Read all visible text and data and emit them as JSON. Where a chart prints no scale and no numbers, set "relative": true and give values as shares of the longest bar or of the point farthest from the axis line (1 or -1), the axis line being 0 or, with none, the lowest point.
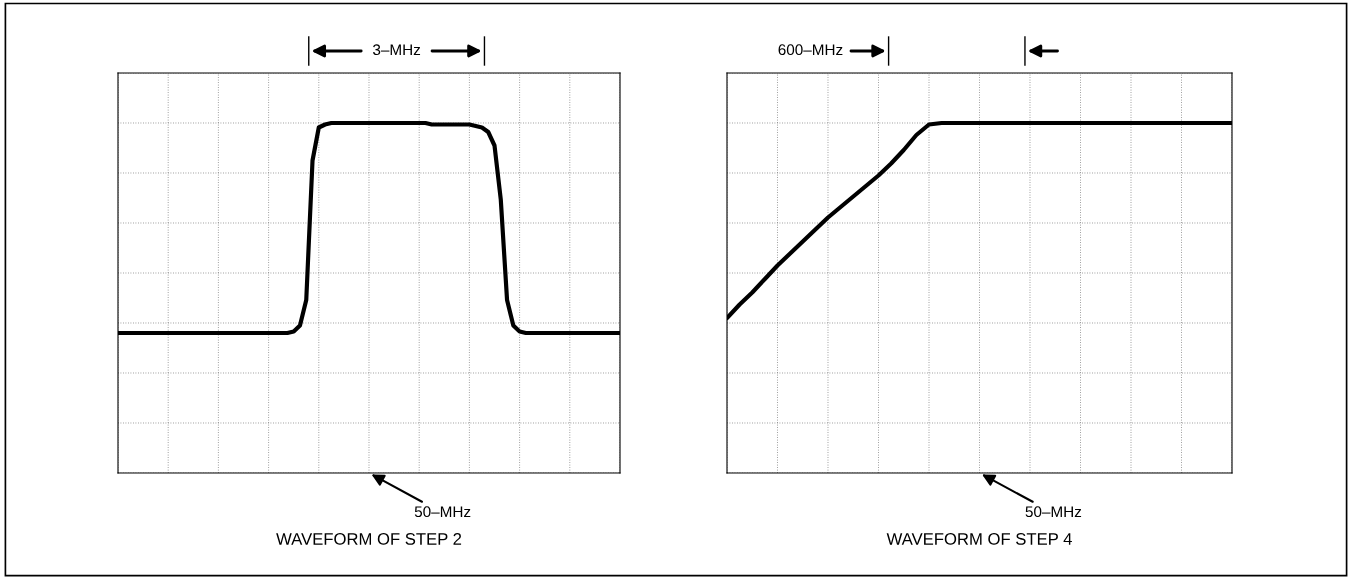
{
  "chart_data": [
    {
      "type": "line",
      "title": "WAVEFORM OF STEP 2",
      "relative": true,
      "grid": true,
      "color": "#000000",
      "categories": [
        null,
        null,
        null,
        null,
        null,
        null,
        null,
        null,
        null,
        null,
        null,
        null,
        null,
        null,
        null,
        null,
        null,
        null,
        null,
        null,
        null,
        null,
        null,
        null,
        null,
        null,
        null,
        null,
        null,
        null,
        null,
        null,
        null,
        null,
        null,
        null,
        null,
        null,
        null,
        null,
        null,
        null,
        null,
        null,
        null,
        null,
        null,
        null,
        null,
        null,
        null,
        null,
        null,
        null,
        null,
        null,
        null,
        null,
        null,
        null,
        null,
        null,
        null,
        null,
        null,
        null,
        null,
        null,
        null,
        null,
        null,
        null,
        null,
        null,
        null,
        null,
        null,
        null,
        null,
        null,
        null
      ],
      "values": [
        -0.4,
        -0.4,
        -0.4,
        -0.4,
        -0.4,
        -0.4,
        -0.4,
        -0.4,
        -0.4,
        -0.4,
        -0.4,
        -0.4,
        -0.4,
        -0.4,
        -0.4,
        -0.4,
        -0.4,
        -0.4,
        -0.4,
        -0.4,
        -0.4,
        -0.4,
        -0.4,
        -0.4,
        -0.4,
        -0.4,
        -0.4,
        -0.4,
        -0.39,
        -0.35,
        -0.18,
        0.75,
        0.97,
        0.99,
        1.0,
        1.0,
        1.0,
        1.0,
        1.0,
        1.0,
        1.0,
        1.0,
        1.0,
        1.0,
        1.0,
        1.0,
        1.0,
        1.0,
        1.0,
        1.0,
        0.99,
        0.99,
        0.99,
        0.99,
        0.99,
        0.99,
        0.99,
        0.98,
        0.97,
        0.94,
        0.85,
        0.49,
        -0.18,
        -0.35,
        -0.39,
        -0.4,
        -0.4,
        -0.4,
        -0.4,
        -0.4,
        -0.4,
        -0.4,
        -0.4,
        -0.4,
        -0.4,
        -0.4,
        -0.4,
        -0.4,
        -0.4,
        -0.4,
        -0.4
      ],
      "annotations": [
        "3–MHz",
        "50–MHz"
      ]
    },
    {
      "type": "line",
      "title": "WAVEFORM OF STEP 4",
      "relative": true,
      "grid": true,
      "color": "#000000",
      "categories": [
        null,
        null,
        null,
        null,
        null,
        null,
        null,
        null,
        null,
        null,
        null,
        null,
        null,
        null,
        null,
        null,
        null,
        null,
        null,
        null,
        null,
        null,
        null,
        null,
        null,
        null,
        null,
        null,
        null,
        null,
        null,
        null,
        null,
        null,
        null,
        null,
        null,
        null,
        null,
        null,
        null
      ],
      "values": [
        -0.3,
        -0.21,
        -0.13,
        -0.04,
        0.05,
        0.13,
        0.21,
        0.29,
        0.37,
        0.44,
        0.51,
        0.58,
        0.65,
        0.73,
        0.82,
        0.92,
        0.99,
        1.0,
        1.0,
        1.0,
        1.0,
        1.0,
        1.0,
        1.0,
        1.0,
        1.0,
        1.0,
        1.0,
        1.0,
        1.0,
        1.0,
        1.0,
        1.0,
        1.0,
        1.0,
        1.0,
        1.0,
        1.0,
        1.0,
        1.0,
        1.0
      ],
      "annotations": [
        "600–MHz",
        "50–MHz"
      ]
    }
  ]
}
